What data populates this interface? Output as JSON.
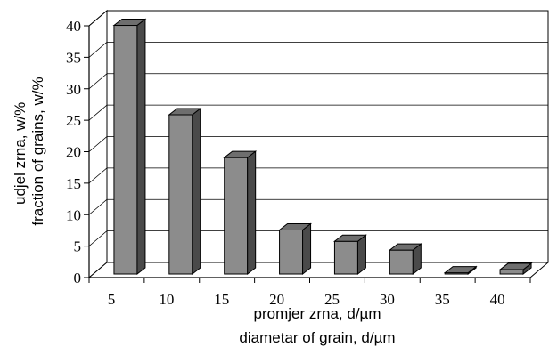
{
  "chart_data": {
    "type": "bar",
    "style": "3d",
    "categories": [
      "5",
      "10",
      "15",
      "20",
      "25",
      "30",
      "35",
      "40"
    ],
    "values": [
      39.5,
      25.3,
      18.5,
      7.0,
      5.2,
      3.8,
      0.2,
      0.7
    ],
    "ylim": [
      0,
      40
    ],
    "yticks": [
      "0",
      "5",
      "10",
      "15",
      "20",
      "25",
      "30",
      "35",
      "40"
    ],
    "ylabel_lines": [
      "udjel zrna, w/%",
      "fraction of grains, w/%"
    ],
    "xlabel_lines": [
      "promjer zrna, d/µm",
      "diametar of grain, d/µm"
    ],
    "grid": true,
    "legend": "none",
    "colors": {
      "bar_front": "#8c8c8c",
      "bar_top": "#6e6e6e",
      "bar_side": "#4a4a4a",
      "axis": "#000000"
    }
  }
}
